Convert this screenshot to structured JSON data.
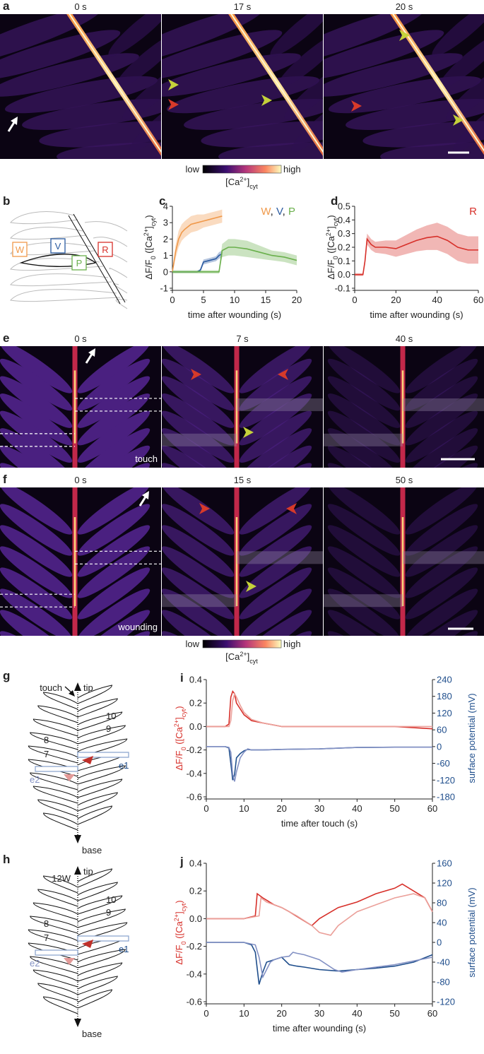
{
  "panels": {
    "a": {
      "label": "a",
      "frames": [
        "0 s",
        "17 s",
        "20 s"
      ]
    },
    "e": {
      "label": "e",
      "frames": [
        "0 s",
        "7 s",
        "40 s"
      ],
      "note": "touch"
    },
    "f": {
      "label": "f",
      "frames": [
        "0 s",
        "15 s",
        "50 s"
      ],
      "note": "wounding"
    }
  },
  "colorbar": {
    "low": "low",
    "high": "high",
    "label": [
      {
        "t": "[Ca"
      },
      {
        "t": "2+",
        "s": "sup"
      },
      {
        "t": "]"
      },
      {
        "t": "cyt",
        "s": "sub"
      }
    ]
  },
  "diagram_b": {
    "label": "b",
    "leaflets": [
      "W",
      "V",
      "P",
      "R"
    ]
  },
  "diagram_g": {
    "label": "g",
    "top": "touch",
    "tip": "tip",
    "numbers": [
      "10",
      "9",
      "8",
      "7"
    ],
    "electrodes": [
      "e1",
      "e2"
    ],
    "bottom": "base"
  },
  "diagram_h": {
    "label": "h",
    "top": "12W",
    "tip": "tip",
    "numbers": [
      "10",
      "9",
      "8",
      "7"
    ],
    "electrodes": [
      "e1",
      "e2"
    ],
    "bottom": "base"
  },
  "chart_data": [
    {
      "type": "line",
      "panel": "c",
      "xlabel": "time after wounding (s)",
      "ylabel": [
        {
          "t": "ΔF/F"
        },
        {
          "t": "0",
          "s": "sub"
        },
        {
          "t": " ([Ca"
        },
        {
          "t": "2+",
          "s": "sup"
        },
        {
          "t": "]"
        },
        {
          "t": "cyt",
          "s": "sub"
        },
        {
          "t": ")"
        }
      ],
      "xlim": [
        0,
        20
      ],
      "xticks": [
        0,
        5,
        10,
        15,
        20
      ],
      "ylim": [
        -1,
        4
      ],
      "yticks": [
        -1,
        0,
        1,
        2,
        3,
        4
      ],
      "legend_separator": ", ",
      "series": [
        {
          "name": "W",
          "color": "#f0994a",
          "x": [
            0,
            0.5,
            1,
            1.5,
            2,
            3,
            4,
            5,
            6,
            7,
            8
          ],
          "values": [
            0,
            1.2,
            2,
            2.4,
            2.6,
            2.9,
            3.0,
            3.1,
            3.2,
            3.3,
            3.4
          ],
          "errors": [
            0.1,
            0.4,
            0.5,
            0.5,
            0.5,
            0.5,
            0.5,
            0.4,
            0.4,
            0.4,
            0.4
          ]
        },
        {
          "name": "V",
          "color": "#2a5aa0",
          "x": [
            0,
            4,
            4.5,
            5,
            6,
            7,
            7.5,
            8
          ],
          "values": [
            0,
            0,
            0.1,
            0.6,
            0.7,
            0.8,
            1.0,
            1.1
          ],
          "errors": [
            0.05,
            0.05,
            0.1,
            0.15,
            0.15,
            0.15,
            0.2,
            0.2
          ]
        },
        {
          "name": "P",
          "color": "#6ab04c",
          "x": [
            0,
            7.5,
            8,
            9,
            10,
            12,
            14,
            16,
            18,
            20
          ],
          "values": [
            0,
            0,
            1.3,
            1.5,
            1.5,
            1.4,
            1.2,
            1.0,
            0.9,
            0.7
          ],
          "errors": [
            0.1,
            0.1,
            0.4,
            0.5,
            0.5,
            0.5,
            0.4,
            0.3,
            0.3,
            0.3
          ]
        }
      ]
    },
    {
      "type": "line",
      "panel": "d",
      "xlabel": "time after wounding (s)",
      "ylabel": [
        {
          "t": "ΔF/F"
        },
        {
          "t": "0",
          "s": "sub"
        },
        {
          "t": " ([Ca"
        },
        {
          "t": "2+",
          "s": "sup"
        },
        {
          "t": "]"
        },
        {
          "t": "cyt",
          "s": "sub"
        },
        {
          "t": ")"
        }
      ],
      "xlim": [
        0,
        60
      ],
      "xticks": [
        0,
        20,
        40,
        60
      ],
      "ylim": [
        -0.1,
        0.5
      ],
      "yticks": [
        -0.1,
        {
          "value": 0,
          "label": "0.0"
        },
        0.1,
        0.2,
        0.3,
        0.4,
        0.5
      ],
      "series": [
        {
          "name": "R",
          "color": "#d7302a",
          "x": [
            0,
            4,
            5,
            6,
            8,
            10,
            15,
            20,
            25,
            30,
            35,
            40,
            45,
            50,
            55,
            60
          ],
          "values": [
            0,
            0,
            0.1,
            0.26,
            0.22,
            0.2,
            0.2,
            0.19,
            0.22,
            0.25,
            0.27,
            0.28,
            0.25,
            0.2,
            0.18,
            0.18
          ],
          "errors": [
            0.01,
            0.01,
            0.03,
            0.04,
            0.04,
            0.04,
            0.05,
            0.06,
            0.07,
            0.08,
            0.09,
            0.1,
            0.1,
            0.1,
            0.1,
            0.1
          ]
        }
      ]
    },
    {
      "type": "line",
      "panel": "i",
      "xlabel": "time after touch (s)",
      "ylabel": [
        {
          "t": "ΔF/F"
        },
        {
          "t": "0",
          "s": "sub"
        },
        {
          "t": " ([Ca"
        },
        {
          "t": "2+",
          "s": "sup"
        },
        {
          "t": "]"
        },
        {
          "t": "cyt",
          "s": "sub"
        },
        {
          "t": ")"
        }
      ],
      "ylabel_color": "#d7302a",
      "y2label": "surface potential (mV)",
      "y2label_color": "#1f4e8c",
      "xlim": [
        0,
        60
      ],
      "xticks": [
        0,
        10,
        20,
        30,
        40,
        50,
        60
      ],
      "ylim": [
        -0.6,
        0.4
      ],
      "yticks": [
        0.4,
        0.2,
        {
          "value": 0,
          "label": "0.0"
        },
        -0.2,
        -0.4,
        -0.6
      ],
      "y2lim": [
        -180,
        240
      ],
      "y2ticks": [
        240,
        180,
        120,
        60,
        0,
        -60,
        -120,
        -180
      ],
      "series": [
        {
          "color": "#d7302a",
          "x": [
            0,
            5,
            6,
            6.5,
            7,
            7.5,
            8,
            9,
            10,
            12,
            15,
            20,
            30,
            40,
            50,
            60
          ],
          "values": [
            0,
            0,
            0.02,
            0.25,
            0.3,
            0.28,
            0.2,
            0.15,
            0.1,
            0.05,
            0.03,
            0,
            0,
            0,
            0,
            -0.02
          ]
        },
        {
          "color": "#eba09a",
          "x": [
            0,
            5,
            6,
            6.5,
            7,
            7.5,
            8,
            9,
            10,
            12,
            15,
            20,
            30,
            40,
            50,
            60
          ],
          "values": [
            0,
            0,
            0,
            0.05,
            0.22,
            0.28,
            0.25,
            0.18,
            0.12,
            0.06,
            0.03,
            0,
            0,
            0,
            0,
            0
          ]
        },
        {
          "color": "#1f4e8c",
          "axis": "y2",
          "x": [
            0,
            5,
            6,
            6.5,
            7,
            7.5,
            8,
            9,
            10,
            11,
            12,
            15,
            20,
            30,
            40,
            50,
            60
          ],
          "values": [
            0,
            0,
            -5,
            -60,
            -120,
            -100,
            -40,
            -25,
            -15,
            -10,
            -12,
            -12,
            -10,
            -8,
            -3,
            -2,
            -2
          ]
        },
        {
          "color": "#8391c4",
          "axis": "y2",
          "x": [
            0,
            5,
            6,
            6.5,
            7,
            7.5,
            8,
            9,
            10,
            11,
            12,
            15,
            20,
            30,
            40,
            50,
            60
          ],
          "values": [
            0,
            0,
            -3,
            -20,
            -100,
            -125,
            -90,
            -40,
            -20,
            -8,
            -12,
            -12,
            -10,
            -8,
            -3,
            -2,
            -2
          ]
        }
      ]
    },
    {
      "type": "line",
      "panel": "j",
      "xlabel": "time after wounding (s)",
      "ylabel": [
        {
          "t": "ΔF/F"
        },
        {
          "t": "0",
          "s": "sub"
        },
        {
          "t": " ([Ca"
        },
        {
          "t": "2+",
          "s": "sup"
        },
        {
          "t": "]"
        },
        {
          "t": "cyt",
          "s": "sub"
        },
        {
          "t": ")"
        }
      ],
      "ylabel_color": "#d7302a",
      "y2label": "surface potential (mV)",
      "y2label_color": "#1f4e8c",
      "xlim": [
        0,
        60
      ],
      "xticks": [
        0,
        10,
        20,
        30,
        40,
        50,
        60
      ],
      "ylim": [
        -0.6,
        0.4
      ],
      "yticks": [
        0.4,
        0.2,
        {
          "value": 0,
          "label": "0.0"
        },
        -0.2,
        -0.4,
        -0.6
      ],
      "y2lim": [
        -120,
        160
      ],
      "y2ticks": [
        160,
        120,
        80,
        40,
        0,
        -40,
        -80,
        -120
      ],
      "series": [
        {
          "color": "#d7302a",
          "x": [
            0,
            10,
            13,
            13.5,
            15,
            18,
            20,
            22,
            25,
            28,
            30,
            35,
            40,
            45,
            50,
            52,
            55,
            58,
            60
          ],
          "values": [
            0,
            0,
            0.02,
            0.18,
            0.15,
            0.1,
            0.08,
            0.05,
            0,
            -0.05,
            0,
            0.08,
            0.12,
            0.18,
            0.22,
            0.25,
            0.2,
            0.15,
            0.05
          ]
        },
        {
          "color": "#eba09a",
          "x": [
            0,
            10,
            14,
            14.5,
            16,
            20,
            24,
            28,
            30,
            33,
            35,
            40,
            45,
            50,
            55,
            58,
            60
          ],
          "values": [
            0,
            0,
            0.02,
            0.15,
            0.12,
            0.08,
            0.02,
            -0.05,
            -0.1,
            -0.12,
            -0.05,
            0.05,
            0.1,
            0.15,
            0.18,
            0.15,
            0.05
          ]
        },
        {
          "color": "#1f4e8c",
          "axis": "y2",
          "x": [
            0,
            10,
            12,
            13,
            14,
            15,
            16,
            18,
            20,
            22,
            24,
            26,
            30,
            35,
            40,
            45,
            50,
            55,
            60
          ],
          "values": [
            0,
            0,
            -5,
            -20,
            -85,
            -60,
            -40,
            -35,
            -30,
            -45,
            -48,
            -50,
            -55,
            -58,
            -55,
            -52,
            -48,
            -40,
            -25
          ]
        },
        {
          "color": "#8391c4",
          "axis": "y2",
          "x": [
            0,
            10,
            13,
            14,
            15,
            16,
            17,
            18,
            20,
            22,
            23,
            24,
            26,
            30,
            34,
            36,
            40,
            50,
            60
          ],
          "values": [
            0,
            0,
            -5,
            -30,
            -70,
            -55,
            -40,
            -35,
            -30,
            -28,
            -20,
            -22,
            -25,
            -35,
            -55,
            -60,
            -55,
            -45,
            -30
          ]
        }
      ]
    }
  ]
}
